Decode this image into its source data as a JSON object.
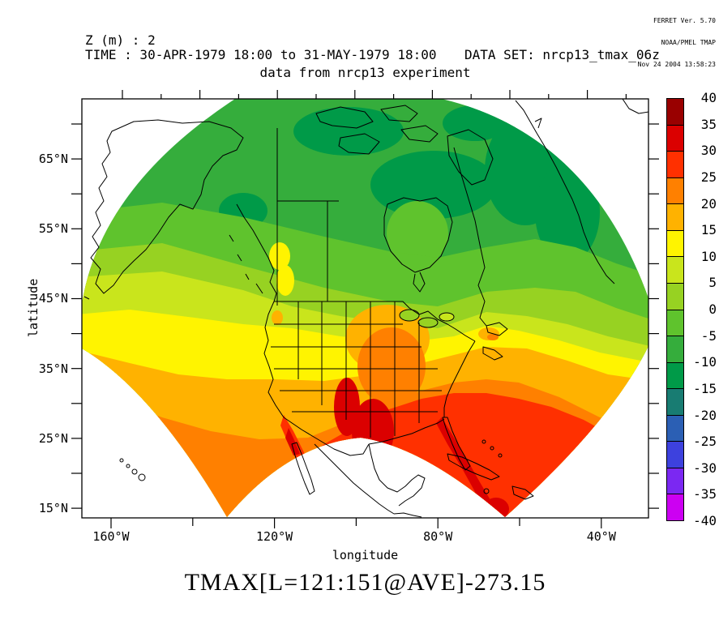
{
  "header": {
    "info_lines": [
      "FERRET Ver. 5.70",
      "NOAA/PMEL TMAP",
      "Nov 24 2004 13:58:23"
    ],
    "z_label": "Z (m) : 2",
    "time_label": "TIME : 30-APR-1979 18:00 to 31-MAY-1979 18:00",
    "dataset_label": "DATA SET: nrcp13_tmax_06z",
    "subtitle": "data from nrcp13 experiment"
  },
  "title": "TMAX[L=121:151@AVE]-273.15",
  "axes": {
    "x_label": "longitude",
    "y_label": "latitude",
    "x_tick_labels": [
      "160°W",
      "120°W",
      "80°W",
      "40°W"
    ],
    "y_tick_labels": [
      "65°N",
      "55°N",
      "45°N",
      "35°N",
      "25°N",
      "15°N"
    ]
  },
  "colorbar": {
    "tick_labels": [
      "40",
      "35",
      "30",
      "25",
      "20",
      "15",
      "10",
      "5",
      "0",
      "-5",
      "-10",
      "-15",
      "-20",
      "-25",
      "-30",
      "-35",
      "-40"
    ],
    "bands": [
      {
        "min": 35,
        "max": 40,
        "color": "#990000"
      },
      {
        "min": 30,
        "max": 35,
        "color": "#DB0000"
      },
      {
        "min": 25,
        "max": 30,
        "color": "#FF3000"
      },
      {
        "min": 20,
        "max": 25,
        "color": "#FF8000"
      },
      {
        "min": 15,
        "max": 20,
        "color": "#FFB200"
      },
      {
        "min": 10,
        "max": 15,
        "color": "#FFF400"
      },
      {
        "min": 5,
        "max": 10,
        "color": "#C9E51C"
      },
      {
        "min": 0,
        "max": 5,
        "color": "#97D222"
      },
      {
        "min": -5,
        "max": 0,
        "color": "#5FC32D"
      },
      {
        "min": -10,
        "max": -5,
        "color": "#35AD3C"
      },
      {
        "min": -15,
        "max": -10,
        "color": "#009A48"
      },
      {
        "min": -20,
        "max": -15,
        "color": "#187C72"
      },
      {
        "min": -25,
        "max": -20,
        "color": "#2B5FB4"
      },
      {
        "min": -30,
        "max": -25,
        "color": "#3D41DE"
      },
      {
        "min": -35,
        "max": -30,
        "color": "#7B28F2"
      },
      {
        "min": -40,
        "max": -35,
        "color": "#CC00F2"
      }
    ]
  }
}
